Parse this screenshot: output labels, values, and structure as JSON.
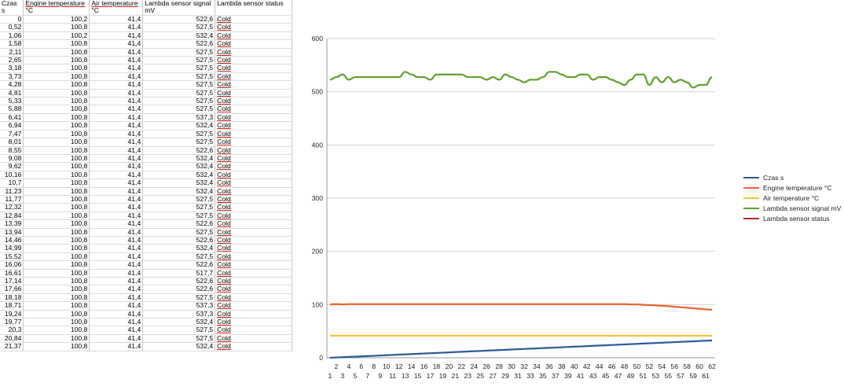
{
  "spreadsheet": {
    "columns": [
      {
        "name": "Czas",
        "unit": "s"
      },
      {
        "name": "Engine temperature",
        "unit": "°C"
      },
      {
        "name": "Air temperature",
        "unit": "°C"
      },
      {
        "name": "Lambda sensor signal",
        "unit": "mV"
      },
      {
        "name": "Lambda sensor status",
        "unit": ""
      }
    ],
    "rows": [
      [
        "0",
        "100,2",
        "41,4",
        "522,6",
        "Cold"
      ],
      [
        "0,52",
        "100,8",
        "41,4",
        "527,5",
        "Cold"
      ],
      [
        "1,06",
        "100,2",
        "41,4",
        "532,4",
        "Cold"
      ],
      [
        "1,58",
        "100,8",
        "41,4",
        "522,6",
        "Cold"
      ],
      [
        "2,11",
        "100,8",
        "41,4",
        "527,5",
        "Cold"
      ],
      [
        "2,65",
        "100,8",
        "41,4",
        "527,5",
        "Cold"
      ],
      [
        "3,18",
        "100,8",
        "41,4",
        "527,5",
        "Cold"
      ],
      [
        "3,73",
        "100,8",
        "41,4",
        "527,5",
        "Cold"
      ],
      [
        "4,28",
        "100,8",
        "41,4",
        "527,5",
        "Cold"
      ],
      [
        "4,81",
        "100,8",
        "41,4",
        "527,5",
        "Cold"
      ],
      [
        "5,33",
        "100,8",
        "41,4",
        "527,5",
        "Cold"
      ],
      [
        "5,88",
        "100,8",
        "41,4",
        "527,5",
        "Cold"
      ],
      [
        "6,41",
        "100,8",
        "41,4",
        "537,3",
        "Cold"
      ],
      [
        "6,94",
        "100,8",
        "41,4",
        "532,4",
        "Cold"
      ],
      [
        "7,47",
        "100,8",
        "41,4",
        "527,5",
        "Cold"
      ],
      [
        "8,01",
        "100,8",
        "41,4",
        "527,5",
        "Cold"
      ],
      [
        "8,55",
        "100,8",
        "41,4",
        "522,6",
        "Cold"
      ],
      [
        "9,08",
        "100,8",
        "41,4",
        "532,4",
        "Cold"
      ],
      [
        "9,62",
        "100,8",
        "41,4",
        "532,4",
        "Cold"
      ],
      [
        "10,16",
        "100,8",
        "41,4",
        "532,4",
        "Cold"
      ],
      [
        "10,7",
        "100,8",
        "41,4",
        "532,4",
        "Cold"
      ],
      [
        "11,23",
        "100,8",
        "41,4",
        "532,4",
        "Cold"
      ],
      [
        "11,77",
        "100,8",
        "41,4",
        "527,5",
        "Cold"
      ],
      [
        "12,32",
        "100,8",
        "41,4",
        "527,5",
        "Cold"
      ],
      [
        "12,84",
        "100,8",
        "41,4",
        "527,5",
        "Cold"
      ],
      [
        "13,39",
        "100,8",
        "41,4",
        "522,6",
        "Cold"
      ],
      [
        "13,94",
        "100,8",
        "41,4",
        "527,5",
        "Cold"
      ],
      [
        "14,46",
        "100,8",
        "41,4",
        "522,6",
        "Cold"
      ],
      [
        "14,99",
        "100,8",
        "41,4",
        "532,4",
        "Cold"
      ],
      [
        "15,52",
        "100,8",
        "41,4",
        "527,5",
        "Cold"
      ],
      [
        "16,06",
        "100,8",
        "41,4",
        "522,6",
        "Cold"
      ],
      [
        "16,61",
        "100,8",
        "41,4",
        "517,7",
        "Cold"
      ],
      [
        "17,14",
        "100,8",
        "41,4",
        "522,6",
        "Cold"
      ],
      [
        "17,66",
        "100,8",
        "41,4",
        "522,6",
        "Cold"
      ],
      [
        "18,18",
        "100,8",
        "41,4",
        "527,5",
        "Cold"
      ],
      [
        "18,71",
        "100,8",
        "41,4",
        "537,3",
        "Cold"
      ],
      [
        "19,24",
        "100,8",
        "41,4",
        "537,3",
        "Cold"
      ],
      [
        "19,77",
        "100,8",
        "41,4",
        "532,4",
        "Cold"
      ],
      [
        "20,3",
        "100,8",
        "41,4",
        "527,5",
        "Cold"
      ],
      [
        "20,84",
        "100,8",
        "41,4",
        "527,5",
        "Cold"
      ],
      [
        "21,37",
        "100,8",
        "41,4",
        "532,4",
        "Cold"
      ]
    ]
  },
  "chart_data": {
    "type": "line",
    "ylim": [
      0,
      600
    ],
    "yticks": [
      0,
      100,
      200,
      300,
      400,
      500,
      600
    ],
    "x_categories_count": 62,
    "x_tick_labels_top": [
      "2",
      "4",
      "6",
      "8",
      "10",
      "12",
      "14",
      "16",
      "18",
      "20",
      "22",
      "24",
      "26",
      "28",
      "30",
      "32",
      "34",
      "36",
      "38",
      "40",
      "42",
      "44",
      "46",
      "48",
      "50",
      "52",
      "54",
      "56",
      "58",
      "60",
      "62"
    ],
    "x_tick_labels_bottom": [
      "1",
      "3",
      "5",
      "7",
      "9",
      "11",
      "13",
      "15",
      "17",
      "19",
      "21",
      "23",
      "25",
      "27",
      "29",
      "31",
      "33",
      "35",
      "37",
      "39",
      "41",
      "43",
      "45",
      "47",
      "49",
      "51",
      "53",
      "55",
      "57",
      "59",
      "61"
    ],
    "grid": true,
    "legend_position": "right",
    "series": [
      {
        "name": "Czas s",
        "color": "#2a5a96",
        "values": [
          0,
          0.52,
          1.06,
          1.58,
          2.11,
          2.65,
          3.18,
          3.73,
          4.28,
          4.81,
          5.33,
          5.88,
          6.41,
          6.94,
          7.47,
          8.01,
          8.55,
          9.08,
          9.62,
          10.16,
          10.7,
          11.23,
          11.77,
          12.32,
          12.84,
          13.39,
          13.94,
          14.46,
          14.99,
          15.52,
          16.06,
          16.61,
          17.14,
          17.66,
          18.18,
          18.71,
          19.24,
          19.77,
          20.3,
          20.84,
          21.37,
          21.9,
          22.43,
          22.96,
          23.5,
          24.03,
          24.56,
          25.1,
          25.63,
          26.16,
          26.7,
          27.23,
          27.76,
          28.3,
          28.83,
          29.36,
          29.9,
          30.43,
          30.96,
          31.5,
          32.03,
          32.56
        ]
      },
      {
        "name": "Engine temperature °C",
        "color": "#e8622a",
        "values": [
          100.2,
          100.8,
          100.2,
          100.8,
          100.8,
          100.8,
          100.8,
          100.8,
          100.8,
          100.8,
          100.8,
          100.8,
          100.8,
          100.8,
          100.8,
          100.8,
          100.8,
          100.8,
          100.8,
          100.8,
          100.8,
          100.8,
          100.8,
          100.8,
          100.8,
          100.8,
          100.8,
          100.8,
          100.8,
          100.8,
          100.8,
          100.8,
          100.8,
          100.8,
          100.8,
          100.8,
          100.8,
          100.8,
          100.8,
          100.8,
          100.8,
          100.8,
          100.8,
          100.8,
          100.8,
          100.8,
          100.8,
          100.8,
          100.2,
          100.2,
          99.6,
          99.0,
          98.4,
          97.8,
          97.0,
          96.0,
          95.0,
          94.0,
          93.0,
          92.0,
          91.0,
          90.2
        ]
      },
      {
        "name": "Air temperature °C",
        "color": "#f5c43a",
        "values": [
          41.4,
          41.4,
          41.4,
          41.4,
          41.4,
          41.4,
          41.4,
          41.4,
          41.4,
          41.4,
          41.4,
          41.4,
          41.4,
          41.4,
          41.4,
          41.4,
          41.4,
          41.4,
          41.4,
          41.4,
          41.4,
          41.4,
          41.4,
          41.4,
          41.4,
          41.4,
          41.4,
          41.4,
          41.4,
          41.4,
          41.4,
          41.4,
          41.4,
          41.4,
          41.4,
          41.4,
          41.4,
          41.4,
          41.4,
          41.4,
          41.4,
          41.4,
          41.4,
          41.4,
          41.4,
          41.4,
          41.4,
          41.4,
          41.4,
          41.4,
          41.4,
          41.4,
          41.4,
          41.4,
          41.4,
          41.4,
          41.4,
          41.4,
          41.4,
          41.4,
          41.4,
          41.4
        ]
      },
      {
        "name": "Lambda sensor signal mV",
        "color": "#62a030",
        "values": [
          522.6,
          527.5,
          532.4,
          522.6,
          527.5,
          527.5,
          527.5,
          527.5,
          527.5,
          527.5,
          527.5,
          527.5,
          537.3,
          532.4,
          527.5,
          527.5,
          522.6,
          532.4,
          532.4,
          532.4,
          532.4,
          532.4,
          527.5,
          527.5,
          527.5,
          522.6,
          527.5,
          522.6,
          532.4,
          527.5,
          522.6,
          517.7,
          522.6,
          522.6,
          527.5,
          537.3,
          537.3,
          532.4,
          527.5,
          527.5,
          532.4,
          532.4,
          522.6,
          527.5,
          527.5,
          522.6,
          517.7,
          512.8,
          522.6,
          532.4,
          532.4,
          512.8,
          527.5,
          517.7,
          527.5,
          517.7,
          522.6,
          517.7,
          507.9,
          512.8,
          512.8,
          527.5
        ]
      },
      {
        "name": "Lambda sensor status",
        "color": "#b02438",
        "values": []
      }
    ]
  }
}
